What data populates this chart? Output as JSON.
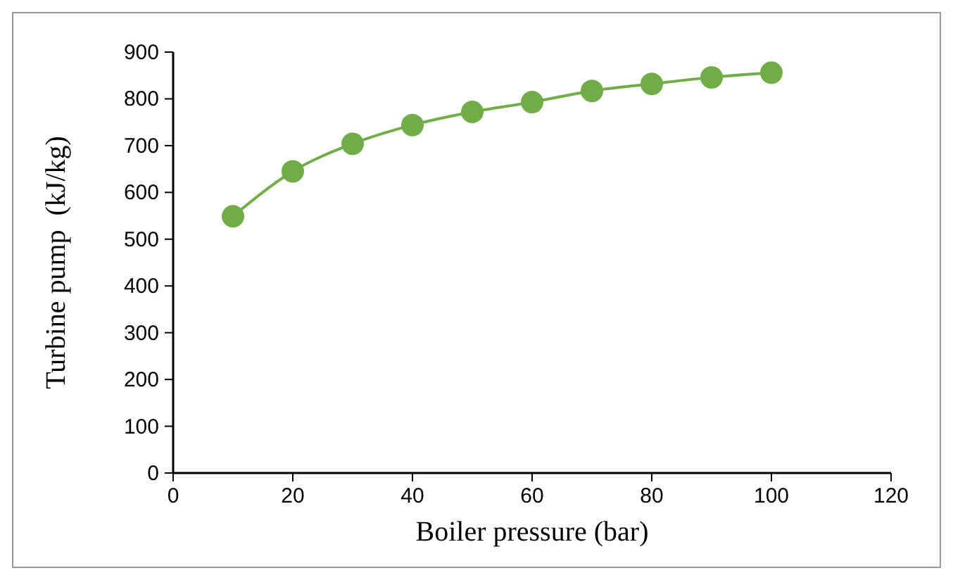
{
  "chart_data": {
    "type": "line",
    "xlabel": "Boiler pressure (bar)",
    "ylabel": "Turbine pump  (kJ/kg)",
    "x": [
      10,
      20,
      30,
      40,
      50,
      60,
      70,
      80,
      90,
      100
    ],
    "series": [
      {
        "color": "#70ad47",
        "values": [
          549,
          645,
          704,
          744,
          772,
          793,
          817,
          832,
          846,
          856
        ]
      }
    ],
    "xlim": [
      0,
      120
    ],
    "xticks": [
      0,
      20,
      40,
      60,
      80,
      100,
      120
    ],
    "ylim": [
      0,
      900
    ],
    "yticks": [
      0,
      100,
      200,
      300,
      400,
      500,
      600,
      700,
      800,
      900
    ],
    "marker": "circle",
    "grid": false
  }
}
